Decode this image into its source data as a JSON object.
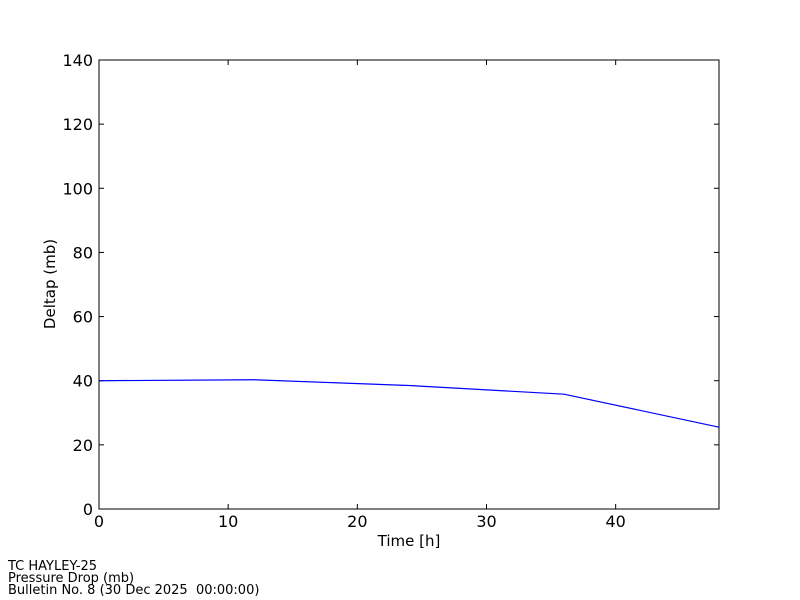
{
  "chart_data": {
    "type": "line",
    "x_label": "Time [h]",
    "y_label": "Deltap (mb)",
    "x": [
      0,
      12,
      24,
      36,
      48
    ],
    "series": [
      {
        "name": "Deltap",
        "color": "#0000ff",
        "values": [
          40,
          40.3,
          38.5,
          35.8,
          25.5
        ]
      }
    ],
    "xlim": [
      0,
      48
    ],
    "xticks": [
      0,
      10,
      20,
      30,
      40
    ],
    "ylim": [
      0,
      140
    ],
    "yticks": [
      0,
      20,
      40,
      60,
      80,
      100,
      120,
      140
    ],
    "grid": false,
    "legend": false,
    "annotations": [
      "TC HAYLEY-25",
      "Pressure Drop (mb)",
      "Bulletin No. 8 (30 Dec 2025  00:00:00)"
    ]
  }
}
